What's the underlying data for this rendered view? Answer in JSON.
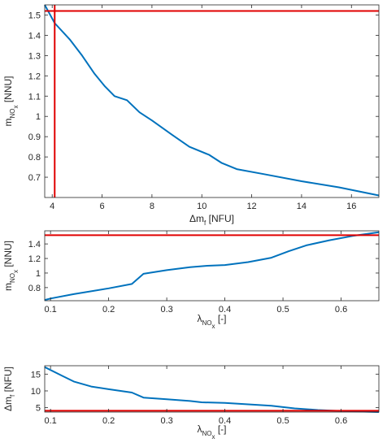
{
  "colors": {
    "series": "#0072BD",
    "reference": "#E00000",
    "axis": "#262626",
    "background": "#ffffff"
  },
  "chart_data": [
    {
      "type": "line",
      "xlabel": {
        "prefix": "Δm",
        "sub": "f",
        "suffix": " [NFU]"
      },
      "ylabel": {
        "prefix": "m",
        "sub": "NO",
        "subsub": "x",
        "suffix": " [NNU]"
      },
      "xlim": [
        3.7,
        17.1
      ],
      "ylim": [
        0.6,
        1.55
      ],
      "xticks": [
        4,
        6,
        8,
        10,
        12,
        14,
        16
      ],
      "yticks": [
        0.7,
        0.8,
        0.9,
        1,
        1.1,
        1.2,
        1.3,
        1.4,
        1.5
      ],
      "grid": false,
      "series": [
        {
          "x": [
            3.7,
            4.1,
            4.7,
            5.2,
            5.7,
            6.1,
            6.5,
            7.0,
            7.5,
            8.0,
            8.8,
            9.5,
            10.3,
            10.8,
            11.4,
            12.5,
            14.0,
            15.5,
            17.1
          ],
          "y": [
            1.55,
            1.46,
            1.38,
            1.3,
            1.21,
            1.15,
            1.1,
            1.08,
            1.02,
            0.98,
            0.91,
            0.85,
            0.81,
            0.77,
            0.74,
            0.715,
            0.68,
            0.65,
            0.61
          ]
        }
      ],
      "reference_lines": {
        "horizontal": [
          1.52
        ],
        "vertical": [
          4.1
        ]
      }
    },
    {
      "type": "line",
      "xlabel": {
        "prefix": "λ",
        "sub": "NO",
        "subsub": "x",
        "suffix": " [-]"
      },
      "ylabel": {
        "prefix": "m",
        "sub": "NO",
        "subsub": "x",
        "suffix": " [NNU]"
      },
      "xlim": [
        0.09,
        0.665
      ],
      "ylim": [
        0.62,
        1.58
      ],
      "xticks": [
        0.1,
        0.2,
        0.3,
        0.4,
        0.5,
        0.6
      ],
      "yticks": [
        0.8,
        1,
        1.2,
        1.4
      ],
      "grid": false,
      "series": [
        {
          "x": [
            0.09,
            0.1,
            0.14,
            0.2,
            0.24,
            0.26,
            0.3,
            0.34,
            0.37,
            0.4,
            0.44,
            0.48,
            0.51,
            0.54,
            0.58,
            0.62,
            0.665
          ],
          "y": [
            0.63,
            0.65,
            0.71,
            0.79,
            0.85,
            0.99,
            1.04,
            1.08,
            1.1,
            1.11,
            1.15,
            1.21,
            1.3,
            1.38,
            1.45,
            1.51,
            1.56
          ]
        }
      ],
      "reference_lines": {
        "horizontal": [
          1.52
        ],
        "vertical": []
      }
    },
    {
      "type": "line",
      "xlabel": {
        "prefix": "λ",
        "sub": "NO",
        "subsub": "x",
        "suffix": " [-]"
      },
      "ylabel": {
        "prefix": "Δm",
        "sub": "f",
        "subsub": "",
        "suffix": " [NFU]"
      },
      "xlim": [
        0.09,
        0.665
      ],
      "ylim": [
        3.7,
        17.5
      ],
      "xticks": [
        0.1,
        0.2,
        0.3,
        0.4,
        0.5,
        0.6
      ],
      "yticks": [
        5,
        10,
        15
      ],
      "grid": false,
      "series": [
        {
          "x": [
            0.09,
            0.12,
            0.14,
            0.17,
            0.2,
            0.24,
            0.26,
            0.3,
            0.34,
            0.36,
            0.4,
            0.44,
            0.48,
            0.52,
            0.56,
            0.6,
            0.665
          ],
          "y": [
            17.1,
            14.5,
            12.8,
            11.3,
            10.5,
            9.5,
            8.0,
            7.5,
            7.0,
            6.6,
            6.4,
            6.0,
            5.6,
            4.8,
            4.3,
            4.0,
            3.7
          ]
        }
      ],
      "reference_lines": {
        "horizontal": [
          4.1
        ],
        "vertical": []
      }
    }
  ]
}
